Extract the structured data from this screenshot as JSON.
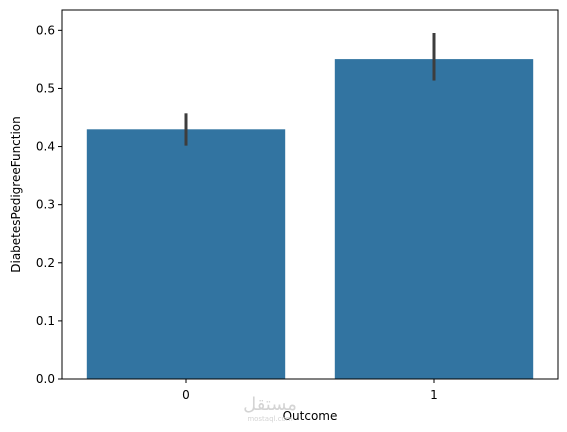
{
  "chart_data": {
    "type": "bar",
    "title": "",
    "xlabel": "Outcome",
    "ylabel": "DiabetesPedigreeFunction",
    "categories": [
      "0",
      "1"
    ],
    "values": [
      0.4297,
      0.5505
    ],
    "error_low": [
      0.4016,
      0.5136
    ],
    "error_high": [
      0.4572,
      0.5954
    ],
    "ylim": [
      0.0,
      0.6
    ],
    "yticks": [
      0.0,
      0.1,
      0.2,
      0.3,
      0.4,
      0.5,
      0.6
    ],
    "grid": false,
    "legend": "none",
    "bar_color": "#3274a1",
    "error_color": "#3d3d3d"
  },
  "watermark": {
    "text": "مستقل",
    "subtext": "mostaql.com"
  }
}
